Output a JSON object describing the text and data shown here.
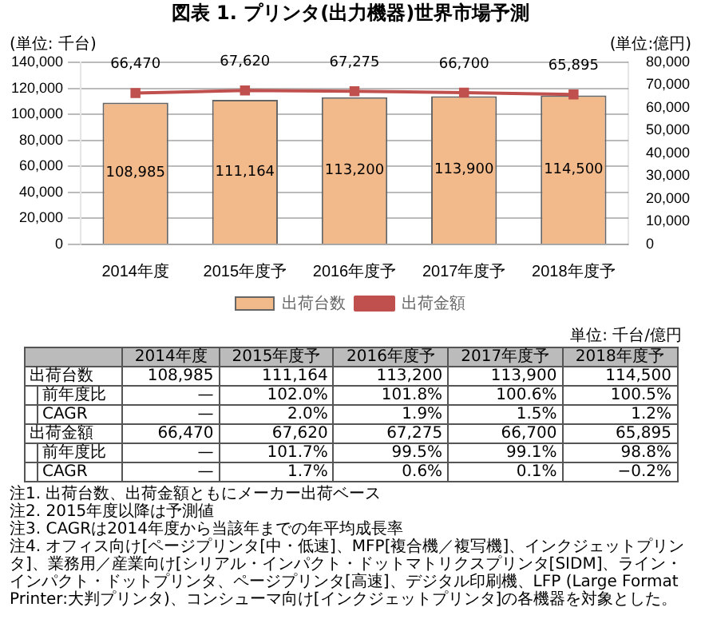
{
  "chart_data": {
    "type": "bar",
    "title": "図表 1. プリンタ(出力機器)世界市場予測",
    "ylabel": "(単位: 千台)",
    "y2label": "(単位:億円)",
    "categories": [
      "2014年度",
      "2015年度予",
      "2016年度予",
      "2017年度予",
      "2018年度予"
    ],
    "series": [
      {
        "name": "出荷台数",
        "color": "#f2b98a",
        "values": [
          108985,
          111164,
          113200,
          113900,
          114500
        ],
        "value_labels": [
          "108,985",
          "111,164",
          "113,200",
          "113,900",
          "114,500"
        ]
      },
      {
        "name": "出荷金額",
        "type": "line",
        "axis": "y2",
        "color": "#c0504d",
        "values": [
          66470,
          67620,
          67275,
          66700,
          65895
        ],
        "value_labels": [
          "66,470",
          "67,620",
          "67,275",
          "66,700",
          "65,895"
        ]
      }
    ],
    "ylim": [
      0,
      140000
    ],
    "yticks": [
      0,
      {
        "value": 20000,
        "label": "20,000"
      },
      {
        "value": 40000,
        "label": "40,000"
      },
      {
        "value": 60000,
        "label": "60,000"
      },
      {
        "value": 80000,
        "label": "80,000"
      },
      {
        "value": 100000,
        "label": "100,000"
      },
      {
        "value": 120000,
        "label": "120,000"
      },
      {
        "value": 140000,
        "label": "140,000"
      }
    ],
    "y2lim": [
      0,
      80000
    ],
    "y2ticks": [
      0,
      {
        "value": 10000,
        "label": "10,000"
      },
      {
        "value": 20000,
        "label": "20,000"
      },
      {
        "value": 30000,
        "label": "30,000"
      },
      {
        "value": 40000,
        "label": "40,000"
      },
      {
        "value": 50000,
        "label": "50,000"
      },
      {
        "value": 60000,
        "label": "60,000"
      },
      {
        "value": 70000,
        "label": "70,000"
      },
      {
        "value": 80000,
        "label": "80,000"
      }
    ],
    "grid": "y",
    "legend": "bottom",
    "marker": "square",
    "annotations": [
      "前年度比\t—\t102.0%\t101.8%\t100.6%\t100.5%",
      "CAGR\t—\t2.0%\t1.9%\t1.5%\t1.2%",
      "前年度比\t—\t101.7%\t99.5%\t99.1%\t98.8%",
      "CAGR\t—\t1.7%\t0.6%\t0.1%\t−0.2%",
      "単位: 千台/億円",
      "注1. 出荷台数、出荷金額ともにメーカー出荷ベース",
      "注2. 2015年度以降は予測値",
      "注3. CAGRは2014年度から当該年までの年平均成長率",
      "注4. オフィス向け[ページプリンタ[中・低速]、MFP[複合機／複写機]、インクジェットプリンタ]、業務用／産業向け[シリアル・インパクト・ドットマトリクスプリンタ[SIDM]、ライン・インパクト・ドットプリンタ、ページプリンタ[高速]、デジタル印刷機、LFP (Large Format Printer:大判プリンタ)、コンシューマ向け[インクジェットプリンタ]の各機器を対象とした。"
    ]
  }
}
